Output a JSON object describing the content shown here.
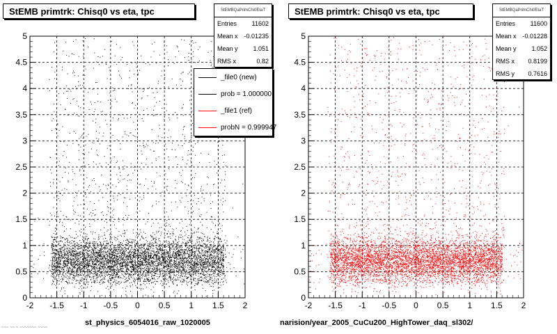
{
  "footer_text": "~~~ ~~ ~ ~~~~~~~ ~~~~",
  "colors": {
    "new": "#000000",
    "ref": "#ff0000"
  },
  "chart_data": [
    {
      "type": "scatter",
      "title": "StEMB primtrk: Chisq0 vs eta, tpc",
      "xlabel": "st_physics_6054016_raw_1020005",
      "xlim": [
        -2,
        2
      ],
      "ylim": [
        0,
        5
      ],
      "xticks": [
        "-2",
        "-1.5",
        "-1",
        "-0.5",
        "0",
        "0.5",
        "1",
        "1.5",
        "2"
      ],
      "yticks": [
        "0",
        "0.5",
        "1",
        "1.5",
        "2",
        "2.5",
        "3",
        "3.5",
        "4",
        "4.5",
        "5"
      ],
      "grid": true,
      "series_color": "#000000",
      "density": {
        "description_note": "",
        "eta_range": [
          -1.6,
          1.6
        ],
        "core_y": [
          0.4,
          1.1
        ],
        "entries_drawn": 6500
      },
      "stats": {
        "name": "StEMBQaPrimChi0EtaT",
        "rows": [
          {
            "label": "Entries",
            "value": "11602"
          },
          {
            "label": "Mean x",
            "value": "-0.01235"
          },
          {
            "label": "Mean y",
            "value": "1.051"
          },
          {
            "label": "RMS x",
            "value": "0.82"
          }
        ]
      },
      "legend": {
        "position": "top-right",
        "entries": [
          {
            "label": "_file0 (new)",
            "color": "#000000"
          },
          {
            "label": "prob = 1.000000",
            "color": "#000000"
          },
          {
            "label": "_file1 (ref)",
            "color": "#ff0000"
          },
          {
            "label": "probN = 0.999947",
            "color": "#ff0000"
          }
        ]
      }
    },
    {
      "type": "scatter",
      "title": "StEMB primtrk: Chisq0 vs eta, tpc",
      "xlabel": "narision/year_2005_CuCu200_HighTower_daq_sl302/",
      "xlim": [
        -2,
        2
      ],
      "ylim": [
        0,
        5
      ],
      "xticks": [
        "-2",
        "-1.5",
        "-1",
        "-0.5",
        "0",
        "0.5",
        "1",
        "1.5",
        "2"
      ],
      "yticks": [
        "0",
        "0.5",
        "1",
        "1.5",
        "2",
        "2.5",
        "3",
        "3.5",
        "4",
        "4.5",
        "5"
      ],
      "grid": true,
      "series_color": "#ff0000",
      "density": {
        "description_note": "",
        "eta_range": [
          -1.6,
          1.6
        ],
        "core_y": [
          0.4,
          1.1
        ],
        "entries_drawn": 6500
      },
      "stats": {
        "name": "StEMBQaPrimChi0EtaT",
        "rows": [
          {
            "label": "Entries",
            "value": "11600"
          },
          {
            "label": "Mean x",
            "value": "-0.01228"
          },
          {
            "label": "Mean y",
            "value": "1.052"
          },
          {
            "label": "RMS x",
            "value": "0.8199"
          },
          {
            "label": "RMS y",
            "value": "0.7616"
          }
        ]
      }
    }
  ]
}
